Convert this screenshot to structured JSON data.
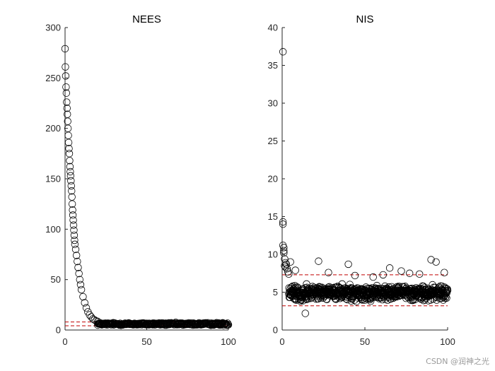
{
  "chart_data": [
    {
      "type": "scatter",
      "title": "NEES",
      "xlabel": "",
      "ylabel": "",
      "xlim": [
        0,
        100
      ],
      "ylim": [
        0,
        300
      ],
      "xticks": [
        0,
        50,
        100
      ],
      "yticks": [
        0,
        50,
        100,
        150,
        200,
        250,
        300
      ],
      "marker": "circle",
      "marker_color": "#000000",
      "bound_lines": [
        4.2,
        8.0
      ],
      "bound_color": "#c00000",
      "series": [
        {
          "decay": {
            "x_step": 0.2,
            "x_max": 6.0,
            "values": [
              279,
              261,
              252,
              241,
              235,
              226,
              220,
              214,
              207,
              200,
              193,
              186,
              180,
              175,
              168,
              162,
              157,
              153,
              148,
              143,
              138,
              132,
              125,
              119,
              114,
              109,
              104,
              99,
              94,
              89,
              85
            ]
          },
          "sample_x": [
            6.5,
            7,
            7.5,
            8,
            8.5,
            9,
            9.5,
            10,
            11,
            12,
            13,
            14,
            15,
            16,
            17,
            18,
            19,
            20
          ],
          "sample_y": [
            80,
            74,
            68,
            62,
            56,
            50,
            45,
            40,
            33,
            27,
            22,
            18,
            15,
            13,
            11,
            10,
            9,
            8.5
          ],
          "tail": {
            "x_start": 20,
            "x_end": 100,
            "step": 0.25,
            "mean": 6.0,
            "spread": 1.8
          }
        }
      ]
    },
    {
      "type": "scatter",
      "title": "NIS",
      "xlabel": "",
      "ylabel": "",
      "xlim": [
        0,
        100
      ],
      "ylim": [
        0,
        40
      ],
      "xticks": [
        0,
        50,
        100
      ],
      "yticks": [
        0,
        5,
        10,
        15,
        20,
        25,
        30,
        35,
        40
      ],
      "marker": "circle",
      "marker_color": "#000000",
      "bound_lines": [
        3.2,
        7.3
      ],
      "bound_color": "#c00000",
      "series": [
        {
          "early_x": [
            0.5,
            0.5,
            0.5,
            0.5,
            1,
            1,
            1,
            1.5,
            1.5,
            2,
            2,
            2.5,
            3,
            3.5,
            4
          ],
          "early_y": [
            36.8,
            14.0,
            14.3,
            11.2,
            10.9,
            10.5,
            10.2,
            9.4,
            8.5,
            8.9,
            8.3,
            8.7,
            8.1,
            7.7,
            7.4
          ],
          "outliers_x": [
            5,
            8,
            14,
            22,
            28,
            40,
            44,
            55,
            61,
            65,
            72,
            77,
            83,
            90,
            93,
            98
          ],
          "outliers_y": [
            9.0,
            7.9,
            2.2,
            9.1,
            7.6,
            8.7,
            7.2,
            7.0,
            7.3,
            8.2,
            7.8,
            7.5,
            7.4,
            9.3,
            9.0,
            7.6
          ],
          "cloud": {
            "x_start": 4,
            "x_end": 100,
            "step": 0.125,
            "mean": 4.9,
            "spread": 1.4
          }
        }
      ]
    }
  ],
  "watermark": "CSDN @润神之光"
}
